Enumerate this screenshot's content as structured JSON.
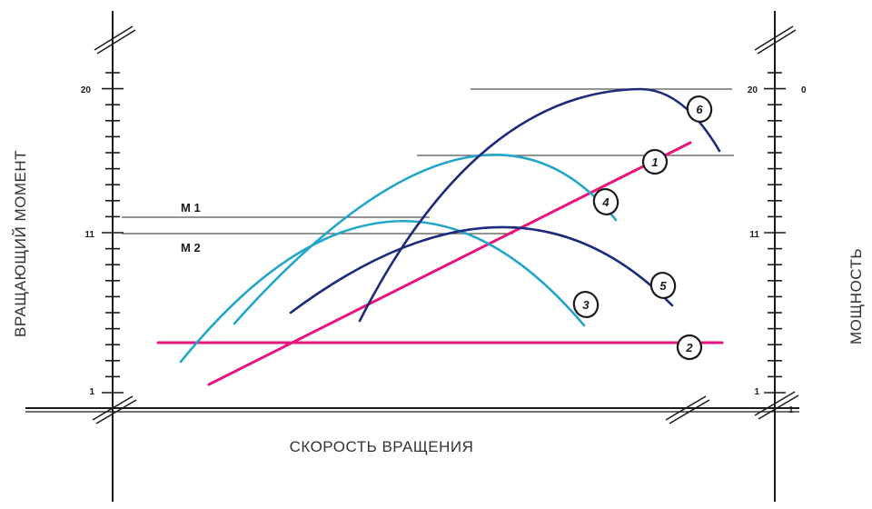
{
  "labels": {
    "y_left": "ВРАЩАЮЩИЙ МОМЕНТ",
    "y_right": "МОЩНОСТЬ",
    "x_axis": "СКОРОСТЬ ВРАЩЕНИЯ",
    "m1": "М 1",
    "m2": "М 2"
  },
  "ticks": {
    "left": [
      "20",
      "11",
      "1"
    ],
    "right": [
      "20",
      "11",
      "1"
    ],
    "right_top_extra": "0",
    "right_bottom_extra": "1"
  },
  "curves": [
    {
      "id": "1",
      "color": "#e8157e"
    },
    {
      "id": "2",
      "color": "#e8157e"
    },
    {
      "id": "3",
      "color": "#23a6c9"
    },
    {
      "id": "4",
      "color": "#23a6c9"
    },
    {
      "id": "5",
      "color": "#1e2a7a"
    },
    {
      "id": "6",
      "color": "#1e2a7a"
    }
  ],
  "colors": {
    "axis": "#1a1a1a",
    "reference_line": "#555555"
  }
}
